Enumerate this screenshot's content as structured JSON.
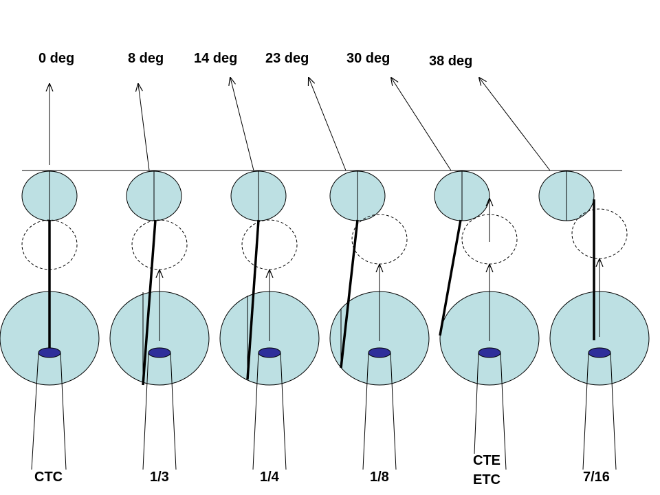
{
  "diagram": {
    "angle_labels": [
      "0 deg",
      "8 deg",
      "14 deg",
      "23 deg",
      "30 deg",
      "38 deg"
    ],
    "position_labels": [
      [
        "CTC"
      ],
      [
        "1/3"
      ],
      [
        "1/4"
      ],
      [
        "1/8"
      ],
      [
        "CTE",
        "ETC"
      ],
      [
        "7/16"
      ]
    ],
    "colors": {
      "ball_fill": "#bde0e3",
      "pocket_fill": "#2e2e9a",
      "line": "#000000",
      "ghost_outline": "#000000"
    },
    "icons": [
      "cue-ball",
      "object-ball",
      "ghost-ball",
      "pocket",
      "aim-line",
      "direction-arrow"
    ]
  }
}
